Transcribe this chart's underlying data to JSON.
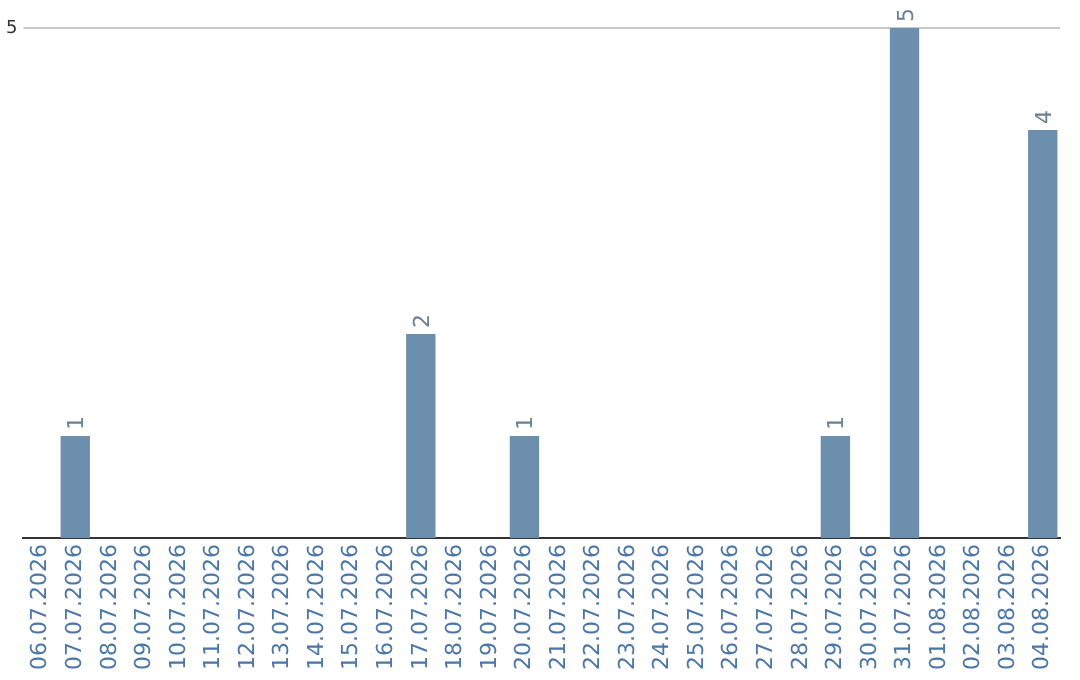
{
  "chart_data": {
    "type": "bar",
    "categories": [
      "06.07.2026",
      "07.07.2026",
      "08.07.2026",
      "09.07.2026",
      "10.07.2026",
      "11.07.2026",
      "12.07.2026",
      "13.07.2026",
      "14.07.2026",
      "15.07.2026",
      "16.07.2026",
      "17.07.2026",
      "18.07.2026",
      "19.07.2026",
      "20.07.2026",
      "21.07.2026",
      "22.07.2026",
      "23.07.2026",
      "24.07.2026",
      "25.07.2026",
      "26.07.2026",
      "27.07.2026",
      "28.07.2026",
      "29.07.2026",
      "30.07.2026",
      "31.07.2026",
      "01.08.2026",
      "02.08.2026",
      "03.08.2026",
      "04.08.2026"
    ],
    "values": [
      null,
      1,
      null,
      null,
      null,
      null,
      null,
      null,
      null,
      null,
      null,
      2,
      null,
      null,
      1,
      null,
      null,
      null,
      null,
      null,
      null,
      null,
      null,
      1,
      null,
      5,
      null,
      null,
      null,
      4
    ],
    "color": "#6d8fae",
    "ylim": [
      0,
      5
    ],
    "yticks": [
      5
    ],
    "ref_lines": [
      {
        "axis": "y",
        "value": 5,
        "color": "#c8c8c8"
      }
    ],
    "data_labels": true,
    "legend": false
  }
}
